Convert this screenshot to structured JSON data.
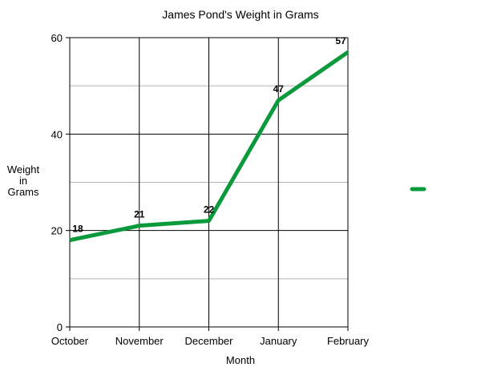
{
  "chart_data": {
    "type": "line",
    "title": "James Pond's Weight in Grams",
    "xlabel": "Month",
    "ylabel_lines": [
      "Weight",
      "in",
      "Grams"
    ],
    "categories": [
      "October",
      "November",
      "December",
      "January",
      "February"
    ],
    "series": [
      {
        "values": [
          18,
          21,
          22,
          47,
          57
        ],
        "color": "#0a9a3c"
      }
    ],
    "ylim": [
      0,
      60
    ],
    "yticks": [
      0,
      20,
      40,
      60
    ],
    "minor_gridlines": [
      10,
      30,
      50
    ],
    "grid": true,
    "legend": "right"
  }
}
